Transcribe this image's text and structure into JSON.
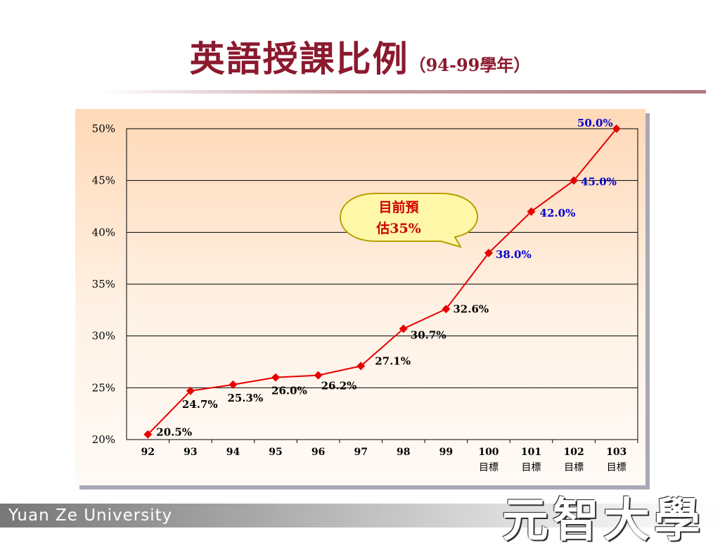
{
  "slide": {
    "title": "英語授課比例",
    "subtitle": "（94-99學年）"
  },
  "footer": {
    "university_en": "Yuan Ze University",
    "university_zh": "元智大學"
  },
  "callout": {
    "line1": "目前預",
    "line2": "估35%",
    "color": "#cc0000",
    "fill": "#fff7a8"
  },
  "chart_data": {
    "type": "line",
    "title": "",
    "xlabel": "",
    "ylabel": "",
    "ylim": [
      20,
      50
    ],
    "y_ticks": [
      "20%",
      "25%",
      "30%",
      "35%",
      "40%",
      "45%",
      "50%"
    ],
    "y_tick_values": [
      20,
      25,
      30,
      35,
      40,
      45,
      50
    ],
    "grid": true,
    "categories": [
      "92",
      "93",
      "94",
      "95",
      "96",
      "97",
      "98",
      "99",
      "100",
      "101",
      "102",
      "103"
    ],
    "category_sublabels": [
      "",
      "",
      "",
      "",
      "",
      "",
      "",
      "",
      "目標",
      "目標",
      "目標",
      "目標"
    ],
    "series": [
      {
        "values": [
          20.5,
          24.7,
          25.3,
          26.0,
          26.2,
          27.1,
          30.7,
          32.6,
          38.0,
          42.0,
          45.0,
          50.0
        ],
        "labels": [
          "20.5%",
          "24.7%",
          "25.3%",
          "26.0%",
          "26.2%",
          "27.1%",
          "30.7%",
          "32.6%",
          "38.0%",
          "42.0%",
          "45.0%",
          "50.0%"
        ],
        "line_color": "#e60000",
        "marker_color": "#e60000",
        "label_colors": [
          "#000000",
          "#000000",
          "#000000",
          "#000000",
          "#000000",
          "#000000",
          "#000000",
          "#000000",
          "#0000cc",
          "#0000cc",
          "#0000cc",
          "#0000cc"
        ]
      }
    ]
  }
}
